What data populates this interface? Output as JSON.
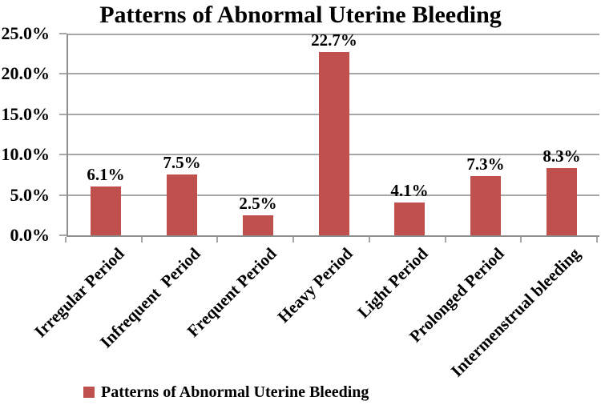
{
  "title": "Patterns of Abnormal Uterine Bleeding",
  "colors": {
    "bar": "#C0504D",
    "gridline": "#A6A6A6",
    "axis": "#8E8E8E",
    "text": "#000000",
    "background": "#FFFFFF"
  },
  "legend": {
    "label": "Patterns of Abnormal Uterine Bleeding",
    "swatch_color": "#C0504D"
  },
  "chart_data": {
    "type": "bar",
    "title": "Patterns of Abnormal Uterine Bleeding",
    "categories": [
      "Irregular Period",
      "Infrequent  Period",
      "Frequent Period",
      "Heavy Period",
      "Light Period",
      "Prolonged Period",
      "Intermenstrual bleeding"
    ],
    "values": [
      6.1,
      7.5,
      2.5,
      22.7,
      4.1,
      7.3,
      8.3
    ],
    "data_labels": [
      "6.1%",
      "7.5%",
      "2.5%",
      "22.7%",
      "4.1%",
      "7.3%",
      "8.3%"
    ],
    "xlabel": "",
    "ylabel": "",
    "ylim": [
      0,
      25
    ],
    "ytick_step": 5,
    "ytick_labels": [
      "0.0%",
      "5.0%",
      "10.0%",
      "15.0%",
      "20.0%",
      "25.0%"
    ],
    "grid": true,
    "legend_position": "bottom",
    "x_label_rotation_deg": 45
  }
}
